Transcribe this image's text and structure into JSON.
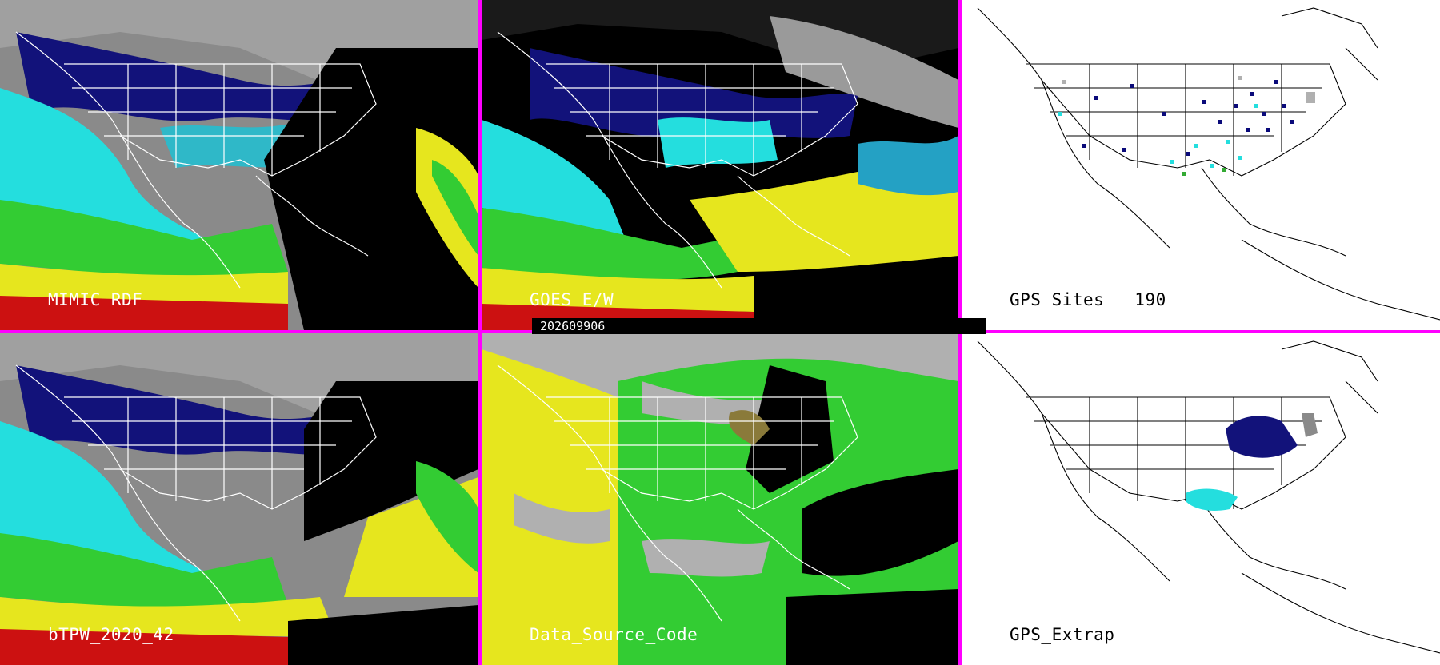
{
  "panels": [
    {
      "id": "mimic",
      "label": "MIMIC_RDF"
    },
    {
      "id": "goes",
      "label": "GOES_E/W"
    },
    {
      "id": "gps-sites",
      "label": "GPS Sites",
      "count": "190"
    },
    {
      "id": "btpw",
      "label": "bTPW_2020_42"
    },
    {
      "id": "dsc",
      "label": "Data_Source_Code"
    },
    {
      "id": "gps-extrap",
      "label": "GPS_Extrap"
    }
  ],
  "timestamp": "202609906",
  "colors": {
    "divider": "#ff00ff",
    "low_tpw": "#0a0a7a",
    "mid_tpw": "#22dede",
    "high_green": "#33cc33",
    "yellow": "#e6e61e",
    "red": "#cc1111",
    "gray": "#b0b0b0"
  }
}
